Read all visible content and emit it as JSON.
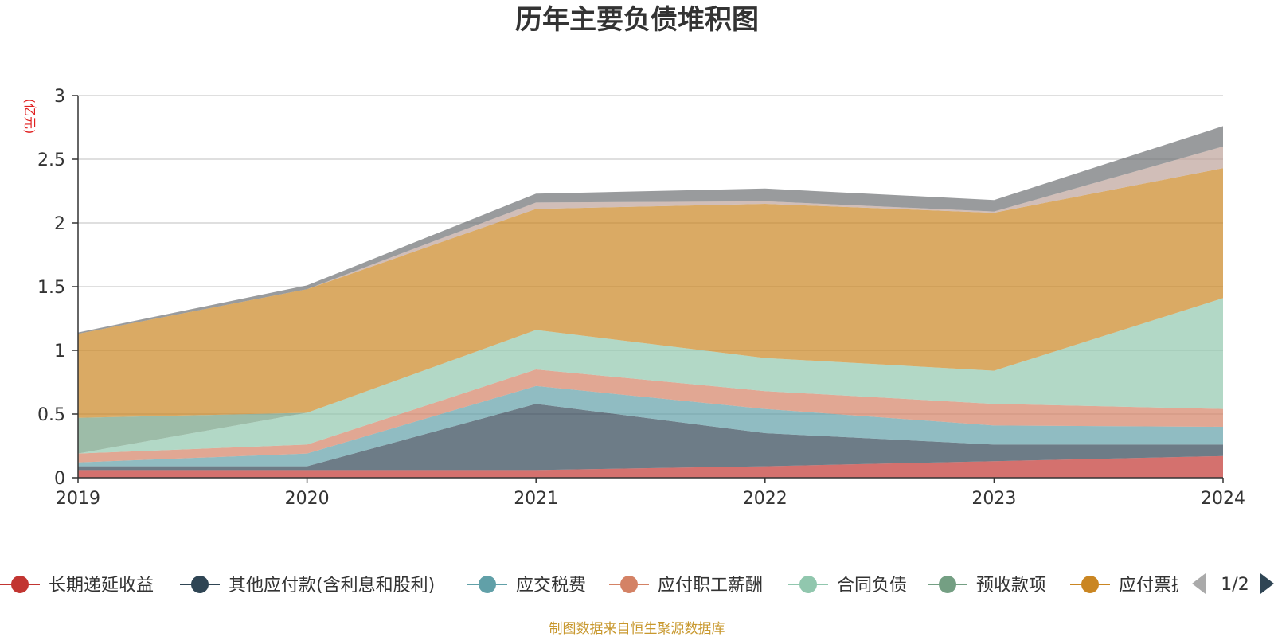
{
  "chart_data": {
    "type": "area",
    "title": "历年主要负债堆积图",
    "unit_label": "(亿元)",
    "x": [
      "2019",
      "2020",
      "2021",
      "2022",
      "2023",
      "2024"
    ],
    "ylim": [
      0,
      3
    ],
    "yticks": [
      "0",
      "0.5",
      "1",
      "1.5",
      "2",
      "2.5",
      "3"
    ],
    "grid": true,
    "stacked": true,
    "series": [
      {
        "name": "长期递延收益",
        "color": "#c23531",
        "values": [
          0.06,
          0.06,
          0.06,
          0.09,
          0.13,
          0.17
        ]
      },
      {
        "name": "其他应付款(含利息和股利)",
        "color": "#2f4554",
        "values": [
          0.03,
          0.03,
          0.52,
          0.26,
          0.13,
          0.09
        ]
      },
      {
        "name": "应交税费",
        "color": "#61a0a8",
        "values": [
          0.03,
          0.1,
          0.14,
          0.19,
          0.15,
          0.14
        ]
      },
      {
        "name": "应付职工薪酬",
        "color": "#d48265",
        "values": [
          0.07,
          0.07,
          0.13,
          0.14,
          0.17,
          0.14
        ]
      },
      {
        "name": "合同负债",
        "color": "#91c7ae",
        "values": [
          0.0,
          0.25,
          0.31,
          0.26,
          0.26,
          0.87
        ]
      },
      {
        "name": "预收款项",
        "color": "#749f83",
        "values": [
          0.28,
          0.0,
          0.0,
          0.0,
          0.0,
          0.0
        ]
      },
      {
        "name": "应付票据",
        "color": "#ca8622",
        "values": [
          0.66,
          0.97,
          0.95,
          1.21,
          1.24,
          1.02
        ]
      },
      {
        "name": "",
        "color": "#bda29a",
        "values": [
          0.0,
          0.0,
          0.05,
          0.02,
          0.01,
          0.17
        ]
      },
      {
        "name": "",
        "color": "#6e7074",
        "values": [
          0.01,
          0.03,
          0.07,
          0.1,
          0.09,
          0.16
        ]
      }
    ],
    "legend_visible": [
      "长期递延收益",
      "其他应付款(含利息和股利)",
      "应交税费",
      "应付职工薪酬",
      "合同负债",
      "预收款项",
      "应付票据"
    ]
  },
  "legend": {
    "page_text": "1/2",
    "prev_icon": "triangle-left-icon",
    "next_icon": "triangle-right-icon"
  },
  "source_text": "制图数据来自恒生聚源数据库"
}
